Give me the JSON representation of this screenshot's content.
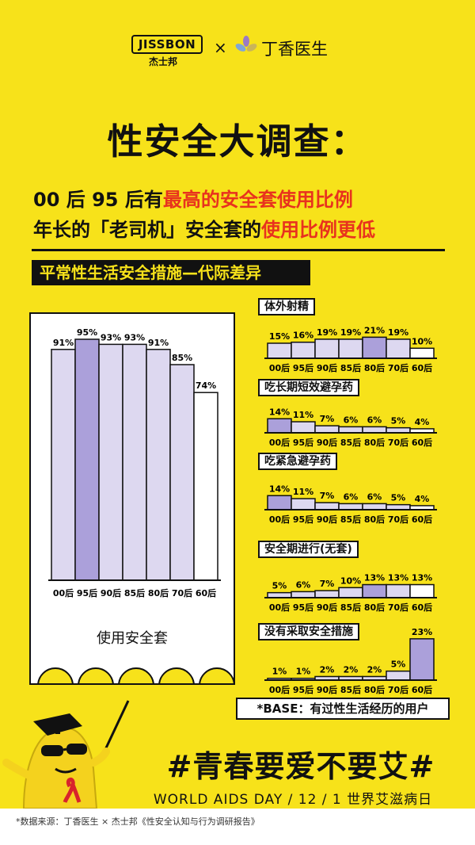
{
  "brand": {
    "jissbon": "JISSBON",
    "jissbon_cn": "杰士邦",
    "times": "×",
    "dingxiang": "丁香医生"
  },
  "header": {
    "title": "性安全大调查：",
    "sub1_black": "00 后  95 后有",
    "sub1_red": "最高的安全套使用比例",
    "sub2_black": "年长的「老司机」安全套的",
    "sub2_red": "使用比例更低"
  },
  "section_title": "平常性生活安全措施—代际差异",
  "colors": {
    "background": "#F7E21A",
    "bar_light": "#DDD8F0",
    "bar_highlight": "#ABA0DA",
    "bar_last": "#FFFFFF",
    "red": "#E8321E"
  },
  "chart_data": [
    {
      "type": "bar",
      "title": "使用安全套",
      "categories": [
        "00后",
        "95后",
        "90后",
        "85后",
        "80后",
        "70后",
        "60后"
      ],
      "values": [
        91,
        95,
        93,
        93,
        91,
        85,
        74
      ],
      "value_labels": [
        "91%",
        "95%",
        "93%",
        "93%",
        "91%",
        "85%",
        "74%"
      ],
      "highlight_index": 1,
      "ylim": [
        0,
        100
      ]
    },
    {
      "type": "bar",
      "title": "体外射精",
      "categories": [
        "00后",
        "95后",
        "90后",
        "85后",
        "80后",
        "70后",
        "60后"
      ],
      "values": [
        15,
        16,
        19,
        19,
        21,
        19,
        10
      ],
      "value_labels": [
        "15%",
        "16%",
        "19%",
        "19%",
        "21%",
        "19%",
        "10%"
      ],
      "highlight_index": 4,
      "ylim": [
        0,
        30
      ]
    },
    {
      "type": "bar",
      "title": "吃长期短效避孕药",
      "categories": [
        "00后",
        "95后",
        "90后",
        "85后",
        "80后",
        "70后",
        "60后"
      ],
      "values": [
        14,
        11,
        7,
        6,
        6,
        5,
        4
      ],
      "value_labels": [
        "14%",
        "11%",
        "7%",
        "6%",
        "6%",
        "5%",
        "4%"
      ],
      "highlight_index": 0,
      "ylim": [
        0,
        30
      ]
    },
    {
      "type": "bar",
      "title": "吃紧急避孕药",
      "categories": [
        "00后",
        "95后",
        "90后",
        "85后",
        "80后",
        "70后",
        "60后"
      ],
      "values": [
        14,
        11,
        7,
        6,
        6,
        5,
        4
      ],
      "value_labels": [
        "14%",
        "11%",
        "7%",
        "6%",
        "6%",
        "5%",
        "4%"
      ],
      "highlight_index": 0,
      "ylim": [
        0,
        30
      ]
    },
    {
      "type": "bar",
      "title": "安全期进行(无套)",
      "categories": [
        "00后",
        "95后",
        "90后",
        "85后",
        "80后",
        "70后",
        "60后"
      ],
      "values": [
        5,
        6,
        7,
        10,
        13,
        13,
        13
      ],
      "value_labels": [
        "5%",
        "6%",
        "7%",
        "10%",
        "13%",
        "13%",
        "13%"
      ],
      "highlight_index": 4,
      "ylim": [
        0,
        30
      ]
    },
    {
      "type": "bar",
      "title": "没有采取安全措施",
      "categories": [
        "00后",
        "95后",
        "90后",
        "85后",
        "80后",
        "70后",
        "60后"
      ],
      "values": [
        1,
        1,
        2,
        2,
        2,
        5,
        23
      ],
      "value_labels": [
        "1%",
        "1%",
        "2%",
        "2%",
        "2%",
        "5%",
        "23%"
      ],
      "highlight_index": 6,
      "ylim": [
        0,
        30
      ]
    }
  ],
  "base_note": "*BASE：有过性生活经历的用户",
  "hashtag": "#青春要爱不要艾#",
  "world_aids_day": "WORLD  AIDS  DAY  /  12  /  1  世界艾滋病日",
  "footer": "*数据来源：丁香医生 × 杰士邦《性安全认知与行为调研报告》"
}
